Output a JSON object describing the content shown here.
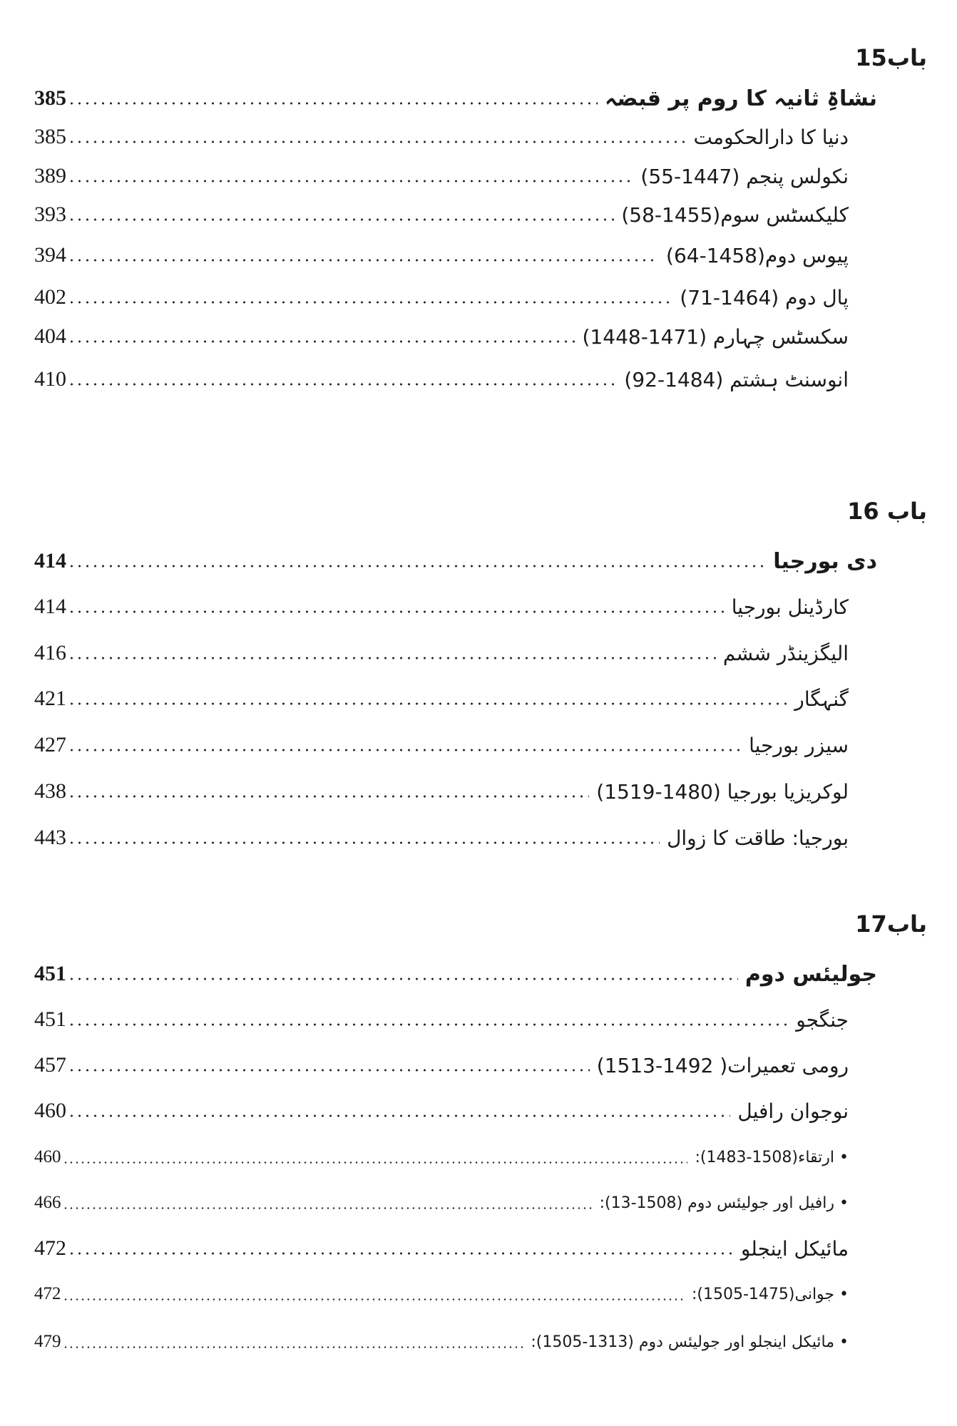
{
  "sections": [
    {
      "chapter": "باب15",
      "title": "نشاۃِ ثانیہ کا روم پر قبضہ",
      "title_page": "385",
      "entries": [
        {
          "text": "دنیا کا دارالحکومت",
          "page": "385"
        },
        {
          "text": "نکولس پنجم (1447-55)",
          "page": "389"
        },
        {
          "text": "کلیکسٹس سوم(1455-58)",
          "page": "393"
        },
        {
          "text": "پیوس دوم(1458-64)",
          "page": "394"
        },
        {
          "text": "پال دوم (1464-71)",
          "page": "402"
        },
        {
          "text": "سکسٹس چہارم (1471-1448)",
          "page": "404"
        },
        {
          "text": "انوسنٹ ہشتم (1484-92)",
          "page": "410"
        }
      ]
    },
    {
      "chapter": "باب 16",
      "title": "دی بورجیا",
      "title_page": "414",
      "entries": [
        {
          "text": "کارڈینل بورجیا",
          "page": "414"
        },
        {
          "text": "الیگزینڈر ششم",
          "page": "416"
        },
        {
          "text": "گنہگار",
          "page": "421"
        },
        {
          "text": "سیزر بورجیا",
          "page": "427"
        },
        {
          "text": "لوکریزیا بورجیا (1480-1519)",
          "page": "438"
        },
        {
          "text": "بورجیا: طاقت کا زوال",
          "page": "443"
        }
      ]
    },
    {
      "chapter": "باب17",
      "title": "جولیئس دوم",
      "title_page": "451",
      "entries": [
        {
          "text": "جنگجو",
          "page": "451"
        },
        {
          "text": "رومی تعمیرات( 1492-1513)",
          "page": "457"
        },
        {
          "text": "نوجوان رافیل",
          "page": "460"
        },
        {
          "text": "• ارتقاء(1508-1483):",
          "page": "460",
          "bullet": true
        },
        {
          "text": "• رافیل اور جولیئس دوم (1508-13):",
          "page": "466",
          "bullet": true
        },
        {
          "text": "مائیکل اینجلو",
          "page": "472"
        },
        {
          "text": "• جوانی(1475-1505):",
          "page": "472",
          "bullet": true
        },
        {
          "text": "• مائیکل اینجلو اور جولیئس دوم (1313-1505):",
          "page": "479",
          "bullet": true
        }
      ]
    }
  ]
}
